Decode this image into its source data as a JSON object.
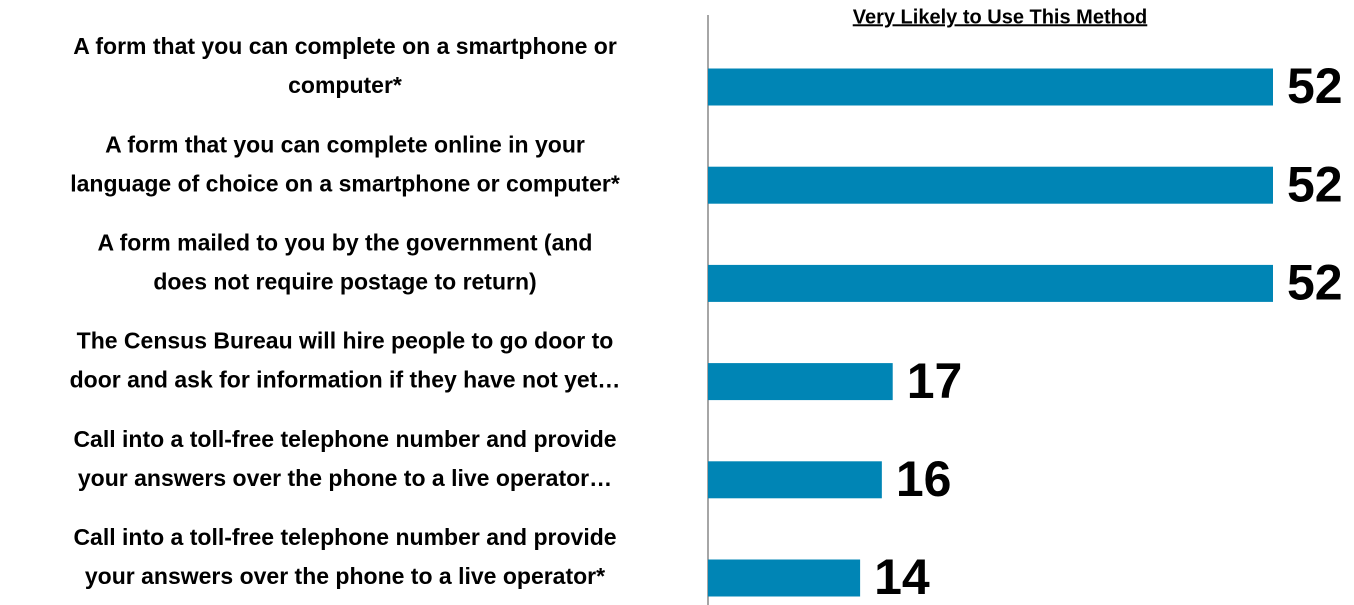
{
  "chart_data": {
    "type": "barh",
    "title": "Very Likely to Use This Method",
    "categories": [
      [
        "A form that you can complete on a smartphone or",
        "computer*"
      ],
      [
        "A form that you can complete online in your",
        "language of choice on a smartphone or computer*"
      ],
      [
        "A form mailed to you by the government (and",
        "does not require postage to return)"
      ],
      [
        "The Census Bureau will hire people to go door to",
        "door and ask for information if they have not yet…"
      ],
      [
        "Call into a toll-free telephone number and provide",
        "your answers over the phone to a live operator…"
      ],
      [
        "Call into a toll-free telephone number and provide",
        "your answers over the phone to a live operator*"
      ]
    ],
    "values": [
      52,
      52,
      52,
      17,
      16,
      14
    ],
    "color": "#0085b5",
    "xlim": [
      0,
      52
    ]
  }
}
